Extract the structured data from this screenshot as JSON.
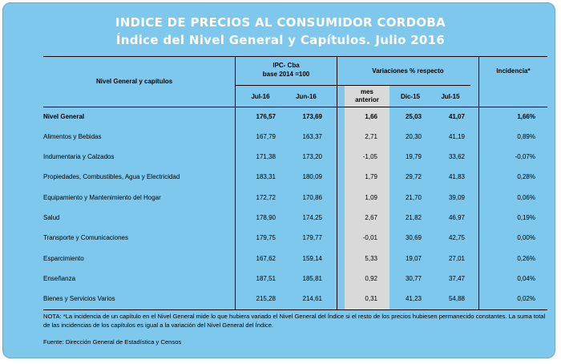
{
  "title": {
    "line1": "INDICE DE PRECIOS AL CONSUMIDOR CORDOBA",
    "line2": "Índice del Nivel General y Capítulos. Julio 2016"
  },
  "header": {
    "label_col": "Nivel General y capítulos",
    "ipc_group_line1": "IPC- Cba",
    "ipc_group_line2": "base 2014 =100",
    "var_group": "Variaciones % respecto",
    "incidencia": "Incidencia*",
    "jul16": "Jul-16",
    "jun16": "Jun-16",
    "mes_line1": "mes",
    "mes_line2": "anterior",
    "dic15": "Dic-15",
    "jul15": "Jul-15"
  },
  "rows": [
    {
      "label": "Nivel General",
      "jul16": "176,57",
      "jun16": "173,69",
      "mes": "1,66",
      "dic": "25,03",
      "jul15": "41,07",
      "inc": "1,66%"
    },
    {
      "label": "Alimentos y Bebidas",
      "jul16": "167,79",
      "jun16": "163,37",
      "mes": "2,71",
      "dic": "20,30",
      "jul15": "41,19",
      "inc": "0,89%"
    },
    {
      "label": "Indumentaria y Calzados",
      "jul16": "171,38",
      "jun16": "173,20",
      "mes": "-1,05",
      "dic": "19,79",
      "jul15": "33,62",
      "inc": "-0,07%"
    },
    {
      "label": "Propiedades, Combustibles, Agua y Electricidad",
      "jul16": "183,31",
      "jun16": "180,09",
      "mes": "1,79",
      "dic": "29,72",
      "jul15": "41,83",
      "inc": "0,28%"
    },
    {
      "label": "Equipamiento y Mantenimiento del Hogar",
      "jul16": "172,72",
      "jun16": "170,86",
      "mes": "1,09",
      "dic": "21,70",
      "jul15": "39,09",
      "inc": "0,06%"
    },
    {
      "label": "Salud",
      "jul16": "178,90",
      "jun16": "174,25",
      "mes": "2,67",
      "dic": "21,82",
      "jul15": "46,97",
      "inc": "0,19%"
    },
    {
      "label": "Transporte y Comunicaciones",
      "jul16": "179,75",
      "jun16": "179,77",
      "mes": "-0,01",
      "dic": "30,69",
      "jul15": "42,75",
      "inc": "0,00%"
    },
    {
      "label": "Esparcimiento",
      "jul16": "167,62",
      "jun16": "159,14",
      "mes": "5,33",
      "dic": "19,07",
      "jul15": "27,01",
      "inc": "0,26%"
    },
    {
      "label": "Enseñanza",
      "jul16": "187,51",
      "jun16": "185,81",
      "mes": "0,92",
      "dic": "30,77",
      "jul15": "37,47",
      "inc": "0,04%"
    },
    {
      "label": "Bienes y Servicios Varios",
      "jul16": "215,28",
      "jun16": "214,61",
      "mes": "0,31",
      "dic": "41,23",
      "jul15": "54,88",
      "inc": "0,02%"
    }
  ],
  "note": "NOTA: *La incidencia de un capítulo en el Nivel General mide lo que hubiera variado el Nivel General del Índice si el resto de los precios hubiesen permanecido constantes. La suma total de las incidencias de los capítulos es igual a la variación del Nivel General del Índice.",
  "source": "Fuente: Dirección General de Estadística y Censos"
}
